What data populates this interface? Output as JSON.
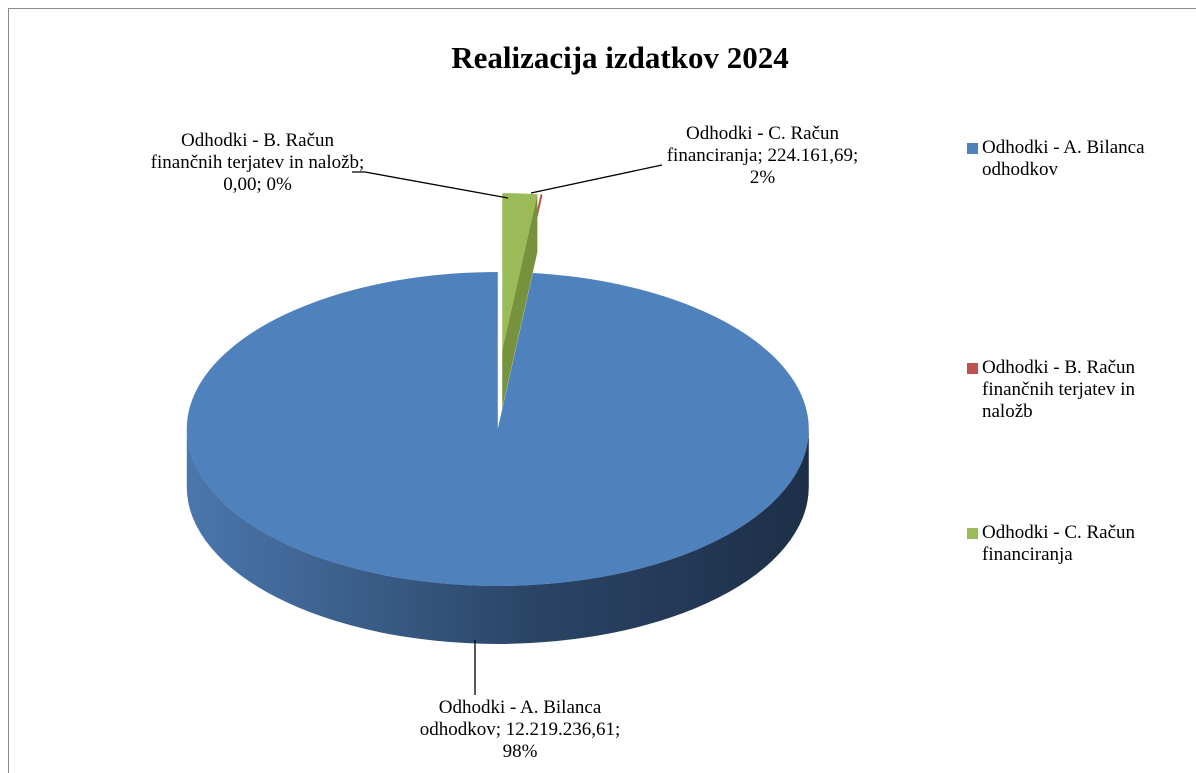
{
  "chart_data": {
    "type": "pie",
    "title": "Realizacija izdatkov 2024",
    "categories": [
      "Odhodki - A. Bilanca odhodkov",
      "Odhodki - B. Račun finančnih terjatev in naložb",
      "Odhodki - C. Račun financiranja"
    ],
    "values": [
      12219236.61,
      0,
      224161.69
    ],
    "value_labels": [
      "12.219.236,61",
      "0,00",
      "224.161,69"
    ],
    "percent_labels": [
      "98%",
      "0%",
      "2%"
    ],
    "colors": [
      "#4f81bd",
      "#c0504d",
      "#9bbb59"
    ],
    "legend": "right"
  }
}
